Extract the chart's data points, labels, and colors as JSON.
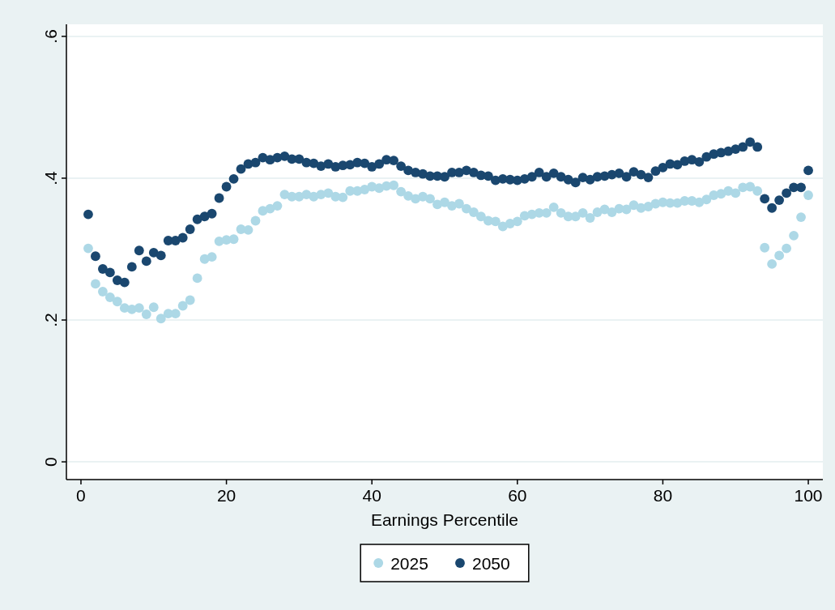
{
  "chart_data": {
    "type": "scatter",
    "xlabel": "Earnings Percentile",
    "x": [
      1,
      2,
      3,
      4,
      5,
      6,
      7,
      8,
      9,
      10,
      11,
      12,
      13,
      14,
      15,
      16,
      17,
      18,
      19,
      20,
      21,
      22,
      23,
      24,
      25,
      26,
      27,
      28,
      29,
      30,
      31,
      32,
      33,
      34,
      35,
      36,
      37,
      38,
      39,
      40,
      41,
      42,
      43,
      44,
      45,
      46,
      47,
      48,
      49,
      50,
      51,
      52,
      53,
      54,
      55,
      56,
      57,
      58,
      59,
      60,
      61,
      62,
      63,
      64,
      65,
      66,
      67,
      68,
      69,
      70,
      71,
      72,
      73,
      74,
      75,
      76,
      77,
      78,
      79,
      80,
      81,
      82,
      83,
      84,
      85,
      86,
      87,
      88,
      89,
      90,
      91,
      92,
      93,
      94,
      95,
      96,
      97,
      98,
      99,
      100
    ],
    "series": [
      {
        "name": "2025",
        "color": "#add8e6",
        "values": [
          0.301,
          0.251,
          0.24,
          0.232,
          0.226,
          0.217,
          0.215,
          0.217,
          0.208,
          0.218,
          0.202,
          0.209,
          0.209,
          0.22,
          0.228,
          0.259,
          0.286,
          0.289,
          0.311,
          0.313,
          0.314,
          0.328,
          0.327,
          0.34,
          0.354,
          0.357,
          0.361,
          0.377,
          0.374,
          0.374,
          0.377,
          0.374,
          0.377,
          0.379,
          0.374,
          0.373,
          0.382,
          0.382,
          0.384,
          0.388,
          0.386,
          0.389,
          0.39,
          0.381,
          0.375,
          0.371,
          0.374,
          0.371,
          0.363,
          0.366,
          0.361,
          0.364,
          0.357,
          0.352,
          0.346,
          0.34,
          0.339,
          0.332,
          0.336,
          0.339,
          0.347,
          0.349,
          0.351,
          0.351,
          0.359,
          0.351,
          0.346,
          0.346,
          0.351,
          0.344,
          0.352,
          0.356,
          0.352,
          0.357,
          0.356,
          0.362,
          0.358,
          0.36,
          0.364,
          0.366,
          0.365,
          0.365,
          0.368,
          0.368,
          0.366,
          0.37,
          0.376,
          0.378,
          0.382,
          0.379,
          0.387,
          0.388,
          0.382,
          0.302,
          0.279,
          0.291,
          0.301,
          0.319,
          0.345,
          0.376
        ]
      },
      {
        "name": "2050",
        "color": "#1a476f",
        "values": [
          0.349,
          0.29,
          0.272,
          0.267,
          0.256,
          0.253,
          0.275,
          0.298,
          0.283,
          0.295,
          0.291,
          0.312,
          0.312,
          0.316,
          0.328,
          0.342,
          0.346,
          0.35,
          0.372,
          0.388,
          0.399,
          0.413,
          0.42,
          0.422,
          0.429,
          0.426,
          0.429,
          0.431,
          0.427,
          0.427,
          0.422,
          0.421,
          0.417,
          0.42,
          0.416,
          0.418,
          0.419,
          0.422,
          0.421,
          0.416,
          0.42,
          0.426,
          0.425,
          0.417,
          0.411,
          0.408,
          0.406,
          0.403,
          0.403,
          0.402,
          0.408,
          0.408,
          0.411,
          0.408,
          0.404,
          0.403,
          0.397,
          0.399,
          0.398,
          0.397,
          0.399,
          0.402,
          0.408,
          0.402,
          0.407,
          0.402,
          0.398,
          0.394,
          0.401,
          0.398,
          0.402,
          0.403,
          0.405,
          0.407,
          0.402,
          0.409,
          0.405,
          0.401,
          0.41,
          0.415,
          0.42,
          0.419,
          0.424,
          0.426,
          0.423,
          0.43,
          0.434,
          0.436,
          0.438,
          0.441,
          0.444,
          0.451,
          0.444,
          0.371,
          0.358,
          0.369,
          0.379,
          0.387,
          0.387,
          0.411
        ]
      }
    ],
    "xlim": [
      -2,
      102
    ],
    "xticks": [
      0,
      20,
      40,
      60,
      80,
      100
    ],
    "ylim": [
      -0.025,
      0.617
    ],
    "yticks": [
      0,
      {
        "value": 0.2,
        "label": ".2"
      },
      {
        "value": 0.4,
        "label": ".4"
      },
      {
        "value": 0.6,
        "label": ".6"
      }
    ],
    "grid": "y",
    "legend": "bottom",
    "marker": "circle"
  }
}
